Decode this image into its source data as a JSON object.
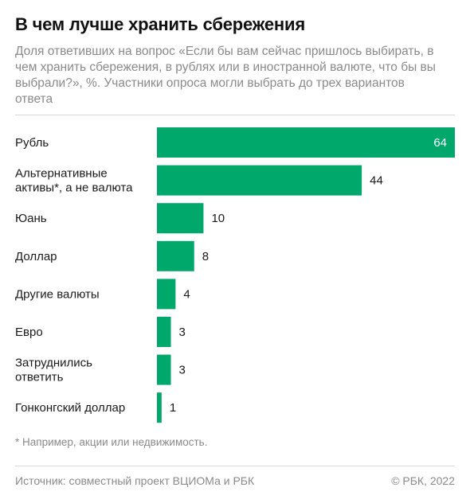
{
  "header": {
    "title": "В чем лучше хранить сбережения",
    "subtitle": "Доля ответивших на вопрос «Если бы вам сейчас пришлось выбирать, в чем хранить сбережения, в рублях или в иностранной валюте, что бы вы выбрали?», %. Участники опроса могли выбрать до трех вариантов ответа"
  },
  "chart_data": {
    "type": "bar",
    "orientation": "horizontal",
    "categories": [
      [
        "Рубль"
      ],
      [
        "Альтернативные",
        "активы*, а не валюта"
      ],
      [
        "Юань"
      ],
      [
        "Доллар"
      ],
      [
        "Другие валюты"
      ],
      [
        "Евро"
      ],
      [
        "Затруднились",
        "ответить"
      ],
      [
        "Гонконгский доллар"
      ]
    ],
    "values": [
      64,
      44,
      10,
      8,
      4,
      3,
      3,
      1
    ],
    "value_labels": [
      "64",
      "44",
      "10",
      "8",
      "4",
      "3",
      "3",
      "1"
    ],
    "xlim": [
      0,
      64
    ],
    "bar_color": "#00a86b",
    "grid": false,
    "legend": "none"
  },
  "footer": {
    "footnote": "* Например, акции или недвижимость.",
    "source": "Источник: совместный проект ВЦИОМа и РБК",
    "copyright": "© РБК, 2022"
  }
}
